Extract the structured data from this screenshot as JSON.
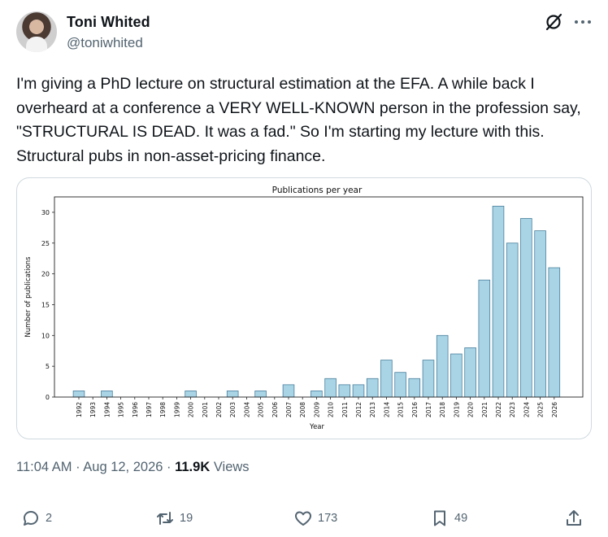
{
  "author": {
    "name": "Toni Whited",
    "handle": "@toniwhited"
  },
  "icons": {
    "grok": "grok-icon",
    "more": "more-options-icon",
    "reply": "reply-icon",
    "retweet": "retweet-icon",
    "like": "heart-icon",
    "bookmark": "bookmark-icon",
    "share": "share-icon"
  },
  "tweet": {
    "text": "I'm giving a PhD lecture on structural estimation at the EFA. A while back I overheard at a conference a VERY WELL-KNOWN person in the profession say, \"STRUCTURAL IS DEAD. It was a fad.\" So I'm starting my lecture with this. Structural pubs in non-asset-pricing finance."
  },
  "meta": {
    "time": "11:04 AM",
    "separator": " · ",
    "date": "Aug 12, 2026",
    "views_count": "11.9K",
    "views_label": " Views"
  },
  "actions": {
    "replies": "2",
    "retweets": "19",
    "likes": "173",
    "bookmarks": "49"
  },
  "chart_data": {
    "type": "bar",
    "title": "Publications per year",
    "xlabel": "Year",
    "ylabel": "Number of publications",
    "ylim": [
      0,
      32.5
    ],
    "yticks": [
      0,
      5,
      10,
      15,
      20,
      25,
      30
    ],
    "grid": false,
    "legend": "none",
    "bar_color": "#a8d4e6",
    "bar_edge_color": "#4a7f9c",
    "categories": [
      "1992",
      "1993",
      "1994",
      "1995",
      "1996",
      "1997",
      "1998",
      "1999",
      "2000",
      "2001",
      "2002",
      "2003",
      "2004",
      "2005",
      "2006",
      "2007",
      "2008",
      "2009",
      "2010",
      "2011",
      "2012",
      "2013",
      "2014",
      "2015",
      "2016",
      "2017",
      "2018",
      "2019",
      "2020",
      "2021",
      "2022",
      "2023",
      "2024",
      "2025",
      "2026"
    ],
    "values": [
      1,
      0,
      1,
      0,
      0,
      0,
      0,
      0,
      1,
      0,
      0,
      1,
      0,
      1,
      0,
      2,
      0,
      1,
      3,
      2,
      2,
      3,
      6,
      4,
      3,
      6,
      10,
      7,
      8,
      19,
      31,
      25,
      29,
      27,
      21
    ]
  }
}
